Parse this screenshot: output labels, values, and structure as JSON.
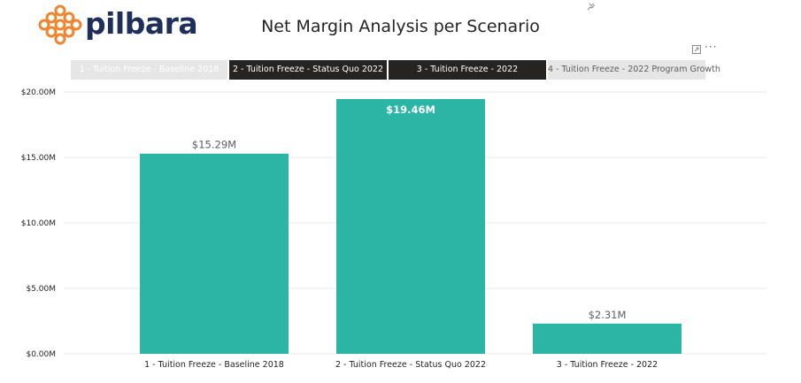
{
  "logo": {
    "text": "pilbara",
    "color": "#1e2f5a",
    "mark_color": "#f0852d"
  },
  "header": {
    "title": "Net Margin Analysis per Scenario"
  },
  "icons": {
    "pin": "pin-icon",
    "focus": "focus-mode-icon",
    "more": "more-options-icon",
    "more_glyph": "···"
  },
  "tabs": [
    {
      "label": "1 - Tuition Freeze - Baseline 2018",
      "state": "unselected"
    },
    {
      "label": "2 - Tuition Freeze - Status Quo 2022",
      "state": "selected"
    },
    {
      "label": "3 - Tuition Freeze - 2022",
      "state": "selected"
    },
    {
      "label": "4 - Tuition Freeze - 2022 Program Growth",
      "state": "unselected"
    }
  ],
  "chart_data": {
    "type": "bar",
    "title": "Net Margin Analysis per Scenario",
    "categories": [
      "1 - Tuition Freeze - Baseline 2018",
      "2 - Tuition Freeze - Status Quo 2022",
      "3 - Tuition Freeze - 2022"
    ],
    "values": [
      15.29,
      19.46,
      2.31
    ],
    "data_labels": [
      "$15.29M",
      "$19.46M",
      "$2.31M"
    ],
    "unit": "M",
    "ylim": [
      0,
      20
    ],
    "y_ticks": [
      0,
      5,
      10,
      15,
      20
    ],
    "y_tick_labels": [
      "$0.00M",
      "$5.00M",
      "$10.00M",
      "$15.00M",
      "$20.00M"
    ],
    "xlabel": "",
    "ylabel": "",
    "grid": true,
    "bar_color": "#2ab5a5",
    "legend": "none"
  }
}
